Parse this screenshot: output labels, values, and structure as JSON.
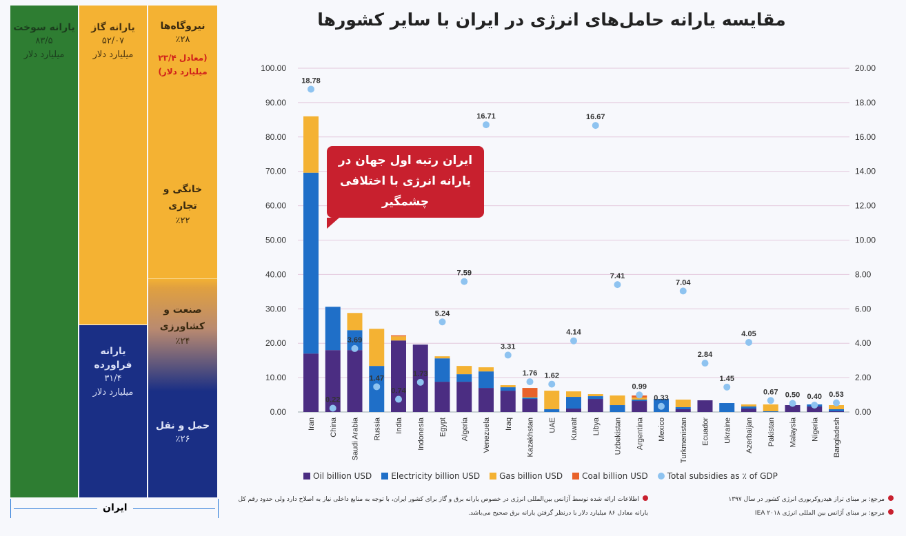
{
  "title": "مقایسه یارانه حامل‌های انرژی در ایران با سایر کشورها",
  "iran_panel": {
    "footer_label": "ایران",
    "fuel": {
      "title": "یارانه سوخت",
      "value": "۸۳/۵",
      "unit": "میلیارد دلار",
      "color": "#2e7d32"
    },
    "gas": {
      "title": "یارانه گاز",
      "value": "۵۲/۰۷",
      "unit": "میلیارد دلار",
      "color": "#f4b233"
    },
    "products": {
      "title": "یارانه فراورده",
      "value": "۳۱/۴",
      "unit": "میلیارد دلار",
      "color": "#1a2f85"
    },
    "sectors": [
      {
        "title": "نیروگاه‌ها",
        "share": "٪۲۸",
        "note": "(معادل ۲۳/۴ میلیارد دلار)"
      },
      {
        "title": "خانگی و تجاری",
        "share": "٪۲۲"
      },
      {
        "title": "صنعت و کشاورزی",
        "share": "٪۲۴"
      },
      {
        "title": "حمل و نقل",
        "share": "٪۲۶"
      }
    ]
  },
  "callout": "ایران رتبه اول جهان در یارانه انرژی با اختلافی چشمگیر",
  "chart_data": {
    "type": "bar",
    "stacked": true,
    "categories": [
      "Iran",
      "China",
      "Saudi Arabia",
      "Russia",
      "India",
      "Indonesia",
      "Egypt",
      "Algeria",
      "Venezuela",
      "Iraq",
      "Kazakhstan",
      "UAE",
      "Kuwait",
      "Libya",
      "Uzbekistan",
      "Argentina",
      "Mexico",
      "Turkmenistan",
      "Ecuador",
      "Ukraine",
      "Azerbaijan",
      "Pakistan",
      "Malaysia",
      "Nigeria",
      "Bangladesh"
    ],
    "series": [
      {
        "name": "Oil billion USD",
        "color": "#4b2d82",
        "values": [
          17,
          18,
          18,
          0,
          20.8,
          19.6,
          8.8,
          8.8,
          7,
          6.2,
          3.8,
          0,
          1,
          3.8,
          0,
          3.2,
          0,
          0.8,
          3.4,
          0,
          1,
          0,
          2,
          1.6,
          0.2
        ]
      },
      {
        "name": "Electricity billion USD",
        "color": "#1f6fc8",
        "values": [
          52.6,
          12.6,
          5.8,
          13.4,
          0,
          0,
          6.8,
          2.2,
          4.8,
          1,
          0.4,
          0.8,
          3.4,
          0.8,
          2,
          0.4,
          3.8,
          0.6,
          0,
          2.6,
          0.6,
          0.2,
          0,
          0.6,
          0.6
        ]
      },
      {
        "name": "Gas billion USD",
        "color": "#f4b233",
        "values": [
          16.4,
          0,
          5,
          10.8,
          1.2,
          0,
          0.6,
          2.4,
          1.2,
          0.6,
          0.2,
          5.4,
          1.6,
          0.6,
          2.8,
          0.6,
          0,
          2.2,
          0,
          0,
          0.6,
          2,
          0,
          0,
          1.2
        ]
      },
      {
        "name": "Coal billion USD",
        "color": "#e8622a",
        "values": [
          0,
          0,
          0,
          0,
          0.3,
          0,
          0,
          0,
          0,
          0,
          2.6,
          0,
          0,
          0,
          0,
          0.6,
          0,
          0,
          0,
          0,
          0,
          0,
          0,
          0,
          0
        ]
      }
    ],
    "secondary_series": {
      "name": "Total subsidies as ٪ of GDP",
      "color": "#8ec3f0",
      "values": [
        18.78,
        0.22,
        3.69,
        1.47,
        0.74,
        1.73,
        5.24,
        7.59,
        16.71,
        3.31,
        1.76,
        1.62,
        4.14,
        16.67,
        7.41,
        0.99,
        0.33,
        7.04,
        2.84,
        1.45,
        4.05,
        0.67,
        0.5,
        0.4,
        0.53
      ],
      "labels": [
        "18.78",
        "0.22",
        "3.69",
        "1.47",
        "0.74",
        "1.73",
        "5.24",
        "7.59",
        "16.71",
        "3.31",
        "1.76",
        "1.62",
        "4.14",
        "16.67",
        "7.41",
        "0.99",
        "0.33",
        "7.04",
        "2.84",
        "1.45",
        "4.05",
        "0.67",
        "0.50",
        "0.40",
        "0.53"
      ]
    },
    "ylim": [
      0,
      100
    ],
    "y_ticks": [
      "0.00",
      "10.00",
      "20.00",
      "30.00",
      "40.00",
      "50.00",
      "60.00",
      "70.00",
      "80.00",
      "90.00",
      "100.00"
    ],
    "y2lim": [
      0,
      20
    ],
    "y2_ticks": [
      "0.00",
      "2.00",
      "4.00",
      "6.00",
      "8.00",
      "10.00",
      "12.00",
      "14.00",
      "16.00",
      "18.00",
      "20.00"
    ],
    "grid": true,
    "legend": "bottom"
  },
  "notes": {
    "ref1": "مرجع: بر مبنای تراز هیدروکربوری انرژی کشور در سال ۱۳۹۷",
    "ref2": "مرجع: بر مبنای آژانس بین المللی انرژی IEA ۲۰۱۸",
    "remark": "اطلاعات ارائه شده توسط آژانس بین‌المللی انرژی در خصوص یارانه برق و گاز برای کشور ایران، با توجه به منابع داخلی نیاز به اصلاح دارد ولی حدود رقم کل یارانه معادل ۸۶ میلیارد دلار با درنظر گرفتن یارانه برق صحیح می‌باشد."
  }
}
